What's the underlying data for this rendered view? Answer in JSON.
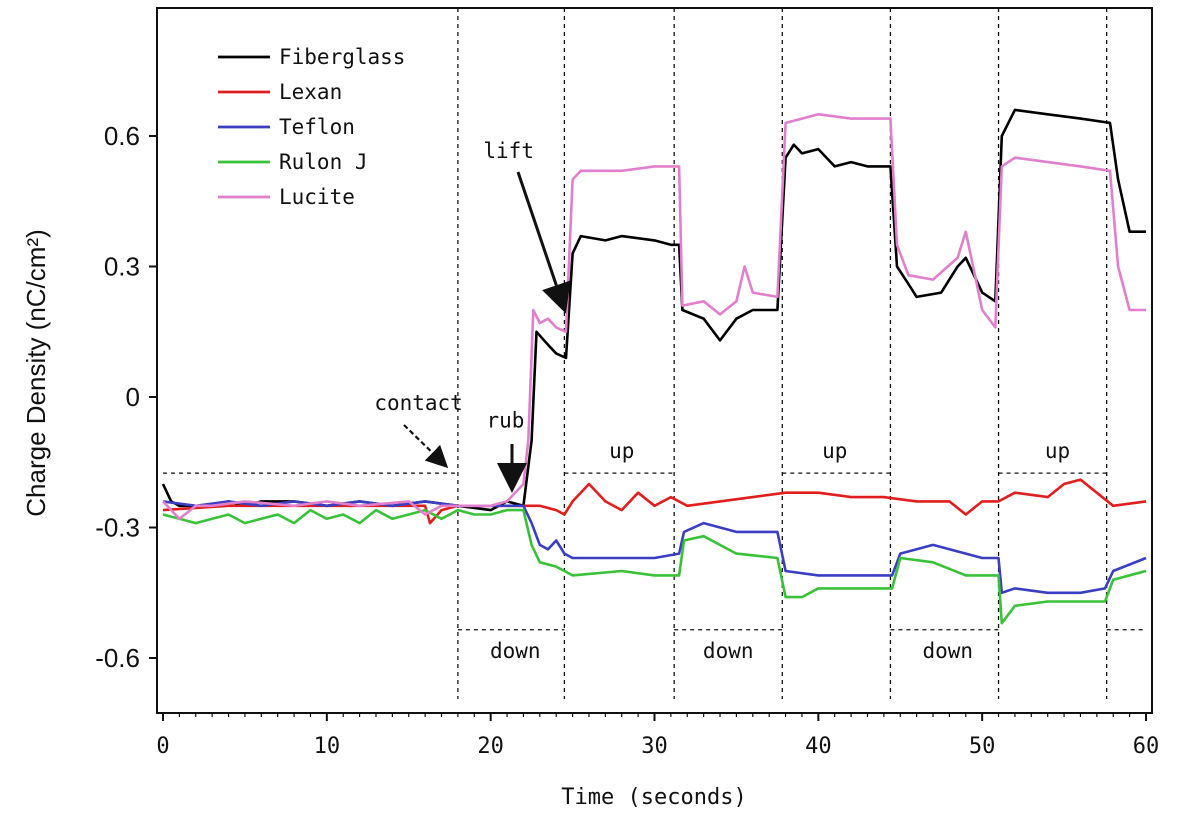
{
  "chart_data": {
    "type": "line",
    "title": "",
    "xlabel": "Time (seconds)",
    "ylabel": "Charge Density (nC/cm²)",
    "xlim": [
      0,
      60
    ],
    "ylim": [
      -0.72,
      0.88
    ],
    "xticks": [
      0,
      10,
      20,
      30,
      40,
      50,
      60
    ],
    "xtick_labels": [
      "0",
      "10",
      "20",
      "30",
      "40",
      "50",
      "60"
    ],
    "yticks": [
      0.6,
      0.3,
      0,
      -0.3,
      -0.6
    ],
    "ytick_labels": [
      "0.6",
      "0.3",
      "0",
      "-0.3",
      "-0.6"
    ],
    "grid": false,
    "legend_position": "top-left",
    "series": [
      {
        "name": "Fiberglass",
        "color": "#000000",
        "points": [
          [
            0,
            -0.2
          ],
          [
            0.5,
            -0.24
          ],
          [
            1,
            -0.25
          ],
          [
            3,
            -0.25
          ],
          [
            4,
            -0.24
          ],
          [
            5,
            -0.25
          ],
          [
            6,
            -0.24
          ],
          [
            8,
            -0.24
          ],
          [
            10,
            -0.25
          ],
          [
            12,
            -0.24
          ],
          [
            14,
            -0.25
          ],
          [
            16,
            -0.24
          ],
          [
            18,
            -0.25
          ],
          [
            20,
            -0.26
          ],
          [
            21,
            -0.24
          ],
          [
            22,
            -0.25
          ],
          [
            22.5,
            -0.1
          ],
          [
            22.8,
            0.15
          ],
          [
            23.5,
            0.12
          ],
          [
            24,
            0.1
          ],
          [
            24.6,
            0.09
          ],
          [
            25,
            0.33
          ],
          [
            25.5,
            0.37
          ],
          [
            27,
            0.36
          ],
          [
            28,
            0.37
          ],
          [
            30,
            0.36
          ],
          [
            31,
            0.35
          ],
          [
            31.5,
            0.35
          ],
          [
            31.7,
            0.2
          ],
          [
            33,
            0.18
          ],
          [
            34,
            0.13
          ],
          [
            35,
            0.18
          ],
          [
            36,
            0.2
          ],
          [
            37.5,
            0.2
          ],
          [
            38,
            0.55
          ],
          [
            38.5,
            0.58
          ],
          [
            39,
            0.56
          ],
          [
            40,
            0.57
          ],
          [
            41,
            0.53
          ],
          [
            42,
            0.54
          ],
          [
            43,
            0.53
          ],
          [
            44.4,
            0.53
          ],
          [
            44.8,
            0.3
          ],
          [
            45.5,
            0.26
          ],
          [
            46,
            0.23
          ],
          [
            47.5,
            0.24
          ],
          [
            48.5,
            0.3
          ],
          [
            49,
            0.32
          ],
          [
            50,
            0.24
          ],
          [
            50.8,
            0.22
          ],
          [
            51.2,
            0.6
          ],
          [
            52,
            0.66
          ],
          [
            54,
            0.65
          ],
          [
            56,
            0.64
          ],
          [
            57.8,
            0.63
          ],
          [
            58.3,
            0.5
          ],
          [
            59,
            0.38
          ],
          [
            60,
            0.38
          ]
        ]
      },
      {
        "name": "Lexan",
        "color": "#e01e1e",
        "points": [
          [
            0,
            -0.26
          ],
          [
            4,
            -0.25
          ],
          [
            8,
            -0.25
          ],
          [
            12,
            -0.25
          ],
          [
            16,
            -0.25
          ],
          [
            16.3,
            -0.29
          ],
          [
            17,
            -0.26
          ],
          [
            18,
            -0.25
          ],
          [
            20,
            -0.25
          ],
          [
            22,
            -0.25
          ],
          [
            23,
            -0.25
          ],
          [
            24,
            -0.26
          ],
          [
            24.5,
            -0.27
          ],
          [
            25,
            -0.24
          ],
          [
            26,
            -0.2
          ],
          [
            27,
            -0.24
          ],
          [
            28,
            -0.26
          ],
          [
            29,
            -0.22
          ],
          [
            30,
            -0.25
          ],
          [
            31,
            -0.23
          ],
          [
            32,
            -0.25
          ],
          [
            34,
            -0.24
          ],
          [
            36,
            -0.23
          ],
          [
            38,
            -0.22
          ],
          [
            40,
            -0.22
          ],
          [
            42,
            -0.23
          ],
          [
            44,
            -0.23
          ],
          [
            46,
            -0.24
          ],
          [
            48,
            -0.24
          ],
          [
            49,
            -0.27
          ],
          [
            50,
            -0.24
          ],
          [
            51,
            -0.24
          ],
          [
            52,
            -0.22
          ],
          [
            54,
            -0.23
          ],
          [
            55,
            -0.2
          ],
          [
            56,
            -0.19
          ],
          [
            57,
            -0.22
          ],
          [
            58,
            -0.25
          ],
          [
            60,
            -0.24
          ]
        ]
      },
      {
        "name": "Teflon",
        "color": "#3a3ec0",
        "points": [
          [
            0,
            -0.24
          ],
          [
            2,
            -0.25
          ],
          [
            4,
            -0.24
          ],
          [
            6,
            -0.25
          ],
          [
            8,
            -0.24
          ],
          [
            10,
            -0.25
          ],
          [
            12,
            -0.24
          ],
          [
            14,
            -0.25
          ],
          [
            16,
            -0.24
          ],
          [
            18,
            -0.25
          ],
          [
            20,
            -0.25
          ],
          [
            22,
            -0.25
          ],
          [
            22.5,
            -0.29
          ],
          [
            23,
            -0.34
          ],
          [
            23.5,
            -0.35
          ],
          [
            24,
            -0.33
          ],
          [
            24.5,
            -0.36
          ],
          [
            25,
            -0.37
          ],
          [
            28,
            -0.37
          ],
          [
            30,
            -0.37
          ],
          [
            31.5,
            -0.36
          ],
          [
            31.8,
            -0.31
          ],
          [
            33,
            -0.29
          ],
          [
            34,
            -0.3
          ],
          [
            35,
            -0.31
          ],
          [
            37.5,
            -0.31
          ],
          [
            38,
            -0.4
          ],
          [
            40,
            -0.41
          ],
          [
            42,
            -0.41
          ],
          [
            44.5,
            -0.41
          ],
          [
            45,
            -0.36
          ],
          [
            47,
            -0.34
          ],
          [
            48,
            -0.35
          ],
          [
            49,
            -0.36
          ],
          [
            50,
            -0.37
          ],
          [
            51,
            -0.37
          ],
          [
            51.2,
            -0.45
          ],
          [
            52,
            -0.44
          ],
          [
            54,
            -0.45
          ],
          [
            56,
            -0.45
          ],
          [
            57.5,
            -0.44
          ],
          [
            58,
            -0.4
          ],
          [
            60,
            -0.37
          ]
        ]
      },
      {
        "name": "Rulon J",
        "color": "#39c237",
        "points": [
          [
            0,
            -0.27
          ],
          [
            1,
            -0.28
          ],
          [
            2,
            -0.29
          ],
          [
            3,
            -0.28
          ],
          [
            4,
            -0.27
          ],
          [
            5,
            -0.29
          ],
          [
            6,
            -0.28
          ],
          [
            7,
            -0.27
          ],
          [
            8,
            -0.29
          ],
          [
            9,
            -0.26
          ],
          [
            10,
            -0.28
          ],
          [
            11,
            -0.27
          ],
          [
            12,
            -0.29
          ],
          [
            13,
            -0.26
          ],
          [
            14,
            -0.28
          ],
          [
            15,
            -0.27
          ],
          [
            16,
            -0.26
          ],
          [
            17,
            -0.28
          ],
          [
            18,
            -0.26
          ],
          [
            19,
            -0.27
          ],
          [
            20,
            -0.27
          ],
          [
            21,
            -0.26
          ],
          [
            22,
            -0.26
          ],
          [
            22.5,
            -0.34
          ],
          [
            23,
            -0.38
          ],
          [
            24,
            -0.39
          ],
          [
            25,
            -0.41
          ],
          [
            28,
            -0.4
          ],
          [
            30,
            -0.41
          ],
          [
            31.5,
            -0.41
          ],
          [
            31.8,
            -0.33
          ],
          [
            33,
            -0.32
          ],
          [
            34,
            -0.34
          ],
          [
            35,
            -0.36
          ],
          [
            37.5,
            -0.37
          ],
          [
            38,
            -0.46
          ],
          [
            39,
            -0.46
          ],
          [
            40,
            -0.44
          ],
          [
            42,
            -0.44
          ],
          [
            44.5,
            -0.44
          ],
          [
            45,
            -0.37
          ],
          [
            47,
            -0.38
          ],
          [
            49,
            -0.41
          ],
          [
            51,
            -0.41
          ],
          [
            51.2,
            -0.52
          ],
          [
            52,
            -0.48
          ],
          [
            54,
            -0.47
          ],
          [
            56,
            -0.47
          ],
          [
            57.5,
            -0.47
          ],
          [
            58,
            -0.42
          ],
          [
            60,
            -0.4
          ]
        ]
      },
      {
        "name": "Lucite",
        "color": "#e27fcc",
        "points": [
          [
            0,
            -0.24
          ],
          [
            1,
            -0.28
          ],
          [
            2,
            -0.25
          ],
          [
            3,
            -0.25
          ],
          [
            5,
            -0.24
          ],
          [
            8,
            -0.25
          ],
          [
            10,
            -0.24
          ],
          [
            12,
            -0.25
          ],
          [
            15,
            -0.24
          ],
          [
            16,
            -0.27
          ],
          [
            17,
            -0.25
          ],
          [
            18,
            -0.25
          ],
          [
            20,
            -0.25
          ],
          [
            21,
            -0.24
          ],
          [
            22,
            -0.2
          ],
          [
            22.3,
            -0.1
          ],
          [
            22.6,
            0.2
          ],
          [
            23,
            0.17
          ],
          [
            23.5,
            0.18
          ],
          [
            24,
            0.16
          ],
          [
            24.6,
            0.15
          ],
          [
            25,
            0.5
          ],
          [
            25.5,
            0.52
          ],
          [
            28,
            0.52
          ],
          [
            30,
            0.53
          ],
          [
            31.5,
            0.53
          ],
          [
            31.7,
            0.21
          ],
          [
            33,
            0.22
          ],
          [
            34,
            0.19
          ],
          [
            35,
            0.22
          ],
          [
            35.5,
            0.3
          ],
          [
            36,
            0.24
          ],
          [
            37.5,
            0.23
          ],
          [
            38,
            0.63
          ],
          [
            39,
            0.64
          ],
          [
            40,
            0.65
          ],
          [
            42,
            0.64
          ],
          [
            44.4,
            0.64
          ],
          [
            44.8,
            0.35
          ],
          [
            45.5,
            0.28
          ],
          [
            47,
            0.27
          ],
          [
            48.5,
            0.32
          ],
          [
            49,
            0.38
          ],
          [
            50,
            0.2
          ],
          [
            50.8,
            0.16
          ],
          [
            51.2,
            0.53
          ],
          [
            52,
            0.55
          ],
          [
            54,
            0.54
          ],
          [
            56,
            0.53
          ],
          [
            57.8,
            0.52
          ],
          [
            58.3,
            0.3
          ],
          [
            59,
            0.2
          ],
          [
            60,
            0.2
          ]
        ]
      }
    ],
    "annotations": [
      {
        "text": "contact",
        "x": 15.6,
        "y": -0.03
      },
      {
        "text": "rub",
        "x": 20.9,
        "y": -0.07
      },
      {
        "text": "lift",
        "x": 21.1,
        "y": 0.55
      },
      {
        "text": "up",
        "x": 28,
        "y": -0.14
      },
      {
        "text": "up",
        "x": 41,
        "y": -0.14
      },
      {
        "text": "up",
        "x": 54.6,
        "y": -0.14
      },
      {
        "text": "down",
        "x": 21.5,
        "y": -0.6
      },
      {
        "text": "down",
        "x": 34.5,
        "y": -0.6
      },
      {
        "text": "down",
        "x": 47.9,
        "y": -0.6
      }
    ],
    "phase_boundaries": [
      18,
      24.5,
      31.2,
      37.8,
      44.4,
      51,
      57.6
    ]
  }
}
